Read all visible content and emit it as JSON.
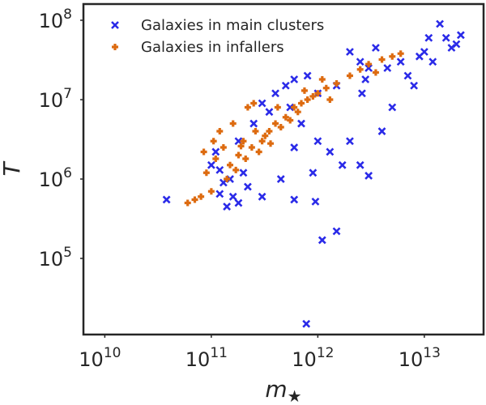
{
  "chart_data": {
    "type": "scatter",
    "title": "",
    "xlabel_main": "m",
    "xlabel_sub": "★",
    "ylabel": "T",
    "xscale": "log",
    "yscale": "log",
    "xlim": [
      6300000000.0,
      36000000000000.0
    ],
    "ylim": [
      11000.0,
      160000000.0
    ],
    "x_ticks": [
      {
        "base": "10",
        "exp": "10",
        "value": 10000000000.0
      },
      {
        "base": "10",
        "exp": "11",
        "value": 100000000000.0
      },
      {
        "base": "10",
        "exp": "12",
        "value": 1000000000000.0
      },
      {
        "base": "10",
        "exp": "13",
        "value": 10000000000000.0
      }
    ],
    "y_ticks": [
      {
        "base": "10",
        "exp": "5",
        "value": 100000.0
      },
      {
        "base": "10",
        "exp": "6",
        "value": 1000000.0
      },
      {
        "base": "10",
        "exp": "7",
        "value": 10000000.0
      },
      {
        "base": "10",
        "exp": "8",
        "value": 100000000.0
      }
    ],
    "grid": false,
    "legend_position": "top-left",
    "series": [
      {
        "name": "Galaxies in main clusters",
        "marker": "x",
        "color": "#2a2ae8",
        "points": [
          [
            38000000000.0,
            550000.0
          ],
          [
            140000000000.0,
            450000.0
          ],
          [
            160000000000.0,
            600000.0
          ],
          [
            120000000000.0,
            650000.0
          ],
          [
            180000000000.0,
            500000.0
          ],
          [
            220000000000.0,
            800000.0
          ],
          [
            300000000000.0,
            600000.0
          ],
          [
            600000000000.0,
            550000.0
          ],
          [
            950000000000.0,
            520000.0
          ],
          [
            1100000000000.0,
            170000.0
          ],
          [
            1500000000000.0,
            220000.0
          ],
          [
            780000000000.0,
            15000.0
          ],
          [
            2500000000000.0,
            1500000.0
          ],
          [
            3000000000000.0,
            1100000.0
          ],
          [
            1700000000000.0,
            1500000.0
          ],
          [
            1300000000000.0,
            2200000.0
          ],
          [
            120000000000.0,
            1300000.0
          ],
          [
            150000000000.0,
            1000000.0
          ],
          [
            100000000000.0,
            1500000.0
          ],
          [
            110000000000.0,
            2200000.0
          ],
          [
            450000000000.0,
            1000000.0
          ],
          [
            900000000000.0,
            1200000.0
          ],
          [
            4000000000000.0,
            4000000.0
          ],
          [
            5000000000000.0,
            8000000.0
          ],
          [
            8000000000000.0,
            15000000.0
          ],
          [
            12000000000000.0,
            30000000.0
          ],
          [
            16000000000000.0,
            60000000.0
          ],
          [
            22000000000000.0,
            65000000.0
          ],
          [
            14000000000000.0,
            90000000.0
          ],
          [
            20000000000000.0,
            50000000.0
          ],
          [
            3000000000000.0,
            25000000.0
          ],
          [
            2500000000000.0,
            30000000.0
          ],
          [
            10000000000000.0,
            40000000.0
          ],
          [
            6000000000000.0,
            30000000.0
          ],
          [
            7000000000000.0,
            20000000.0
          ],
          [
            800000000000.0,
            20000000.0
          ],
          [
            600000000000.0,
            18000000.0
          ],
          [
            500000000000.0,
            15000000.0
          ],
          [
            400000000000.0,
            12000000.0
          ],
          [
            300000000000.0,
            9000000.0
          ],
          [
            2000000000000.0,
            40000000.0
          ],
          [
            1500000000000.0,
            15000000.0
          ],
          [
            1000000000000.0,
            12000000.0
          ],
          [
            180000000000.0,
            3000000.0
          ],
          [
            250000000000.0,
            5000000.0
          ],
          [
            350000000000.0,
            7000000.0
          ],
          [
            550000000000.0,
            8000000.0
          ],
          [
            2800000000000.0,
            18000000.0
          ],
          [
            4500000000000.0,
            25000000.0
          ],
          [
            9000000000000.0,
            35000000.0
          ],
          [
            130000000000.0,
            900000.0
          ],
          [
            200000000000.0,
            1200000.0
          ],
          [
            1000000000000.0,
            3000000.0
          ],
          [
            2000000000000.0,
            3000000.0
          ],
          [
            600000000000.0,
            2500000.0
          ],
          [
            3500000000000.0,
            45000000.0
          ],
          [
            18000000000000.0,
            45000000.0
          ],
          [
            11000000000000.0,
            60000000.0
          ],
          [
            2600000000000.0,
            12000000.0
          ],
          [
            700000000000.0,
            5000000.0
          ]
        ]
      },
      {
        "name": "Galaxies in infallers",
        "marker": "plus-filled",
        "color": "#dd6b10",
        "points": [
          [
            60000000000.0,
            500000.0
          ],
          [
            70000000000.0,
            550000.0
          ],
          [
            80000000000.0,
            600000.0
          ],
          [
            100000000000.0,
            700000.0
          ],
          [
            90000000000.0,
            1200000.0
          ],
          [
            110000000000.0,
            1800000.0
          ],
          [
            130000000000.0,
            2500000.0
          ],
          [
            150000000000.0,
            1500000.0
          ],
          [
            120000000000.0,
            4000000.0
          ],
          [
            160000000000.0,
            5000000.0
          ],
          [
            250000000000.0,
            9000000.0
          ],
          [
            220000000000.0,
            8000000.0
          ],
          [
            180000000000.0,
            2000000.0
          ],
          [
            200000000000.0,
            3000000.0
          ],
          [
            240000000000.0,
            2500000.0
          ],
          [
            300000000000.0,
            3000000.0
          ],
          [
            350000000000.0,
            4000000.0
          ],
          [
            400000000000.0,
            5000000.0
          ],
          [
            500000000000.0,
            6000000.0
          ],
          [
            600000000000.0,
            8000000.0
          ],
          [
            700000000000.0,
            9000000.0
          ],
          [
            800000000000.0,
            10000000.0
          ],
          [
            1000000000000.0,
            12000000.0
          ],
          [
            1200000000000.0,
            14000000.0
          ],
          [
            1500000000000.0,
            16000000.0
          ],
          [
            2000000000000.0,
            20000000.0
          ],
          [
            2500000000000.0,
            24000000.0
          ],
          [
            3000000000000.0,
            28000000.0
          ],
          [
            4000000000000.0,
            32000000.0
          ],
          [
            5000000000000.0,
            35000000.0
          ],
          [
            6000000000000.0,
            38000000.0
          ],
          [
            280000000000.0,
            2200000.0
          ],
          [
            320000000000.0,
            3500000.0
          ],
          [
            450000000000.0,
            4500000.0
          ],
          [
            550000000000.0,
            5500000.0
          ],
          [
            140000000000.0,
            1000000.0
          ],
          [
            170000000000.0,
            1300000.0
          ],
          [
            210000000000.0,
            1800000.0
          ],
          [
            650000000000.0,
            7000000.0
          ],
          [
            900000000000.0,
            11000000.0
          ],
          [
            360000000000.0,
            2800000.0
          ],
          [
            260000000000.0,
            4000000.0
          ],
          [
            85000000000.0,
            2200000.0
          ],
          [
            105000000000.0,
            3000000.0
          ],
          [
            750000000000.0,
            13000000.0
          ],
          [
            1100000000000.0,
            18000000.0
          ],
          [
            3500000000000.0,
            22000000.0
          ],
          [
            1300000000000.0,
            10000000.0
          ],
          [
            420000000000.0,
            8000000.0
          ],
          [
            190000000000.0,
            2600000.0
          ]
        ]
      }
    ]
  }
}
